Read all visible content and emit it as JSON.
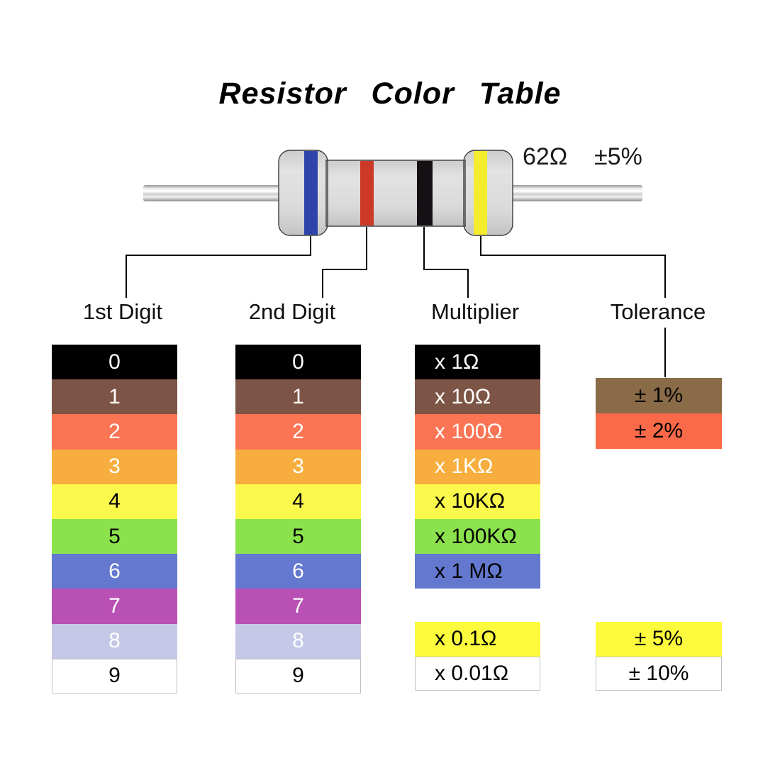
{
  "title": "Resistor Color Table",
  "resistor": {
    "value_label": "62Ω",
    "tolerance_label": "±5%",
    "body_color": "#dcdcdc",
    "bands": [
      {
        "name": "blue",
        "color": "#2e44ab"
      },
      {
        "name": "red",
        "color": "#cc3a27"
      },
      {
        "name": "black",
        "color": "#141014"
      },
      {
        "name": "yellow",
        "color": "#f5ec2d"
      }
    ]
  },
  "column_headers": [
    "1st Digit",
    "2nd Digit",
    "Multiplier",
    "Tolerance"
  ],
  "tables": {
    "first_digit": {
      "rows": [
        {
          "label": "0",
          "bg": "#000000",
          "fg": "#ffffff"
        },
        {
          "label": "1",
          "bg": "#7d5547",
          "fg": "#ffffff"
        },
        {
          "label": "2",
          "bg": "#fb7454",
          "fg": "#ffffff"
        },
        {
          "label": "3",
          "bg": "#f7ae3e",
          "fg": "#ffffff"
        },
        {
          "label": "4",
          "bg": "#fcf94d",
          "fg": "#000000"
        },
        {
          "label": "5",
          "bg": "#8ce24c",
          "fg": "#000000"
        },
        {
          "label": "6",
          "bg": "#6378ce",
          "fg": "#ffffff"
        },
        {
          "label": "7",
          "bg": "#b950b3",
          "fg": "#ffffff"
        },
        {
          "label": "8",
          "bg": "#c5c9e7",
          "fg": "#ffffff"
        },
        {
          "label": "9",
          "bg": "#ffffff",
          "fg": "#000000",
          "bd": "#c0c0c0"
        }
      ]
    },
    "second_digit": {
      "rows": [
        {
          "label": "0",
          "bg": "#000000",
          "fg": "#ffffff"
        },
        {
          "label": "1",
          "bg": "#7d5547",
          "fg": "#ffffff"
        },
        {
          "label": "2",
          "bg": "#fb7454",
          "fg": "#ffffff"
        },
        {
          "label": "3",
          "bg": "#f7ae3e",
          "fg": "#ffffff"
        },
        {
          "label": "4",
          "bg": "#fcf94d",
          "fg": "#000000"
        },
        {
          "label": "5",
          "bg": "#8ce24c",
          "fg": "#000000"
        },
        {
          "label": "6",
          "bg": "#6378ce",
          "fg": "#ffffff"
        },
        {
          "label": "7",
          "bg": "#b950b3",
          "fg": "#ffffff"
        },
        {
          "label": "8",
          "bg": "#c5c9e7",
          "fg": "#ffffff"
        },
        {
          "label": "9",
          "bg": "#ffffff",
          "fg": "#000000",
          "bd": "#c0c0c0"
        }
      ]
    },
    "multiplier": {
      "rows": [
        {
          "label": "x 1Ω",
          "bg": "#000000",
          "fg": "#ffffff"
        },
        {
          "label": "x 10Ω",
          "bg": "#7d5547",
          "fg": "#ffffff"
        },
        {
          "label": "x 100Ω",
          "bg": "#fb7454",
          "fg": "#ffffff"
        },
        {
          "label": "x 1KΩ",
          "bg": "#f7ae3e",
          "fg": "#ffffff"
        },
        {
          "label": "x 10KΩ",
          "bg": "#fcf94d",
          "fg": "#000000"
        },
        {
          "label": "x 100KΩ",
          "bg": "#8ce24c",
          "fg": "#000000"
        },
        {
          "label": "x 1 MΩ",
          "bg": "#6378ce",
          "fg": "#000000"
        }
      ]
    },
    "multiplier_extra": {
      "rows": [
        {
          "label": "x 0.1Ω",
          "bg": "#fdfb3e",
          "fg": "#000000"
        },
        {
          "label": "x 0.01Ω",
          "bg": "#ffffff",
          "fg": "#000000",
          "bd": "#c0c0c0"
        }
      ]
    },
    "tolerance": {
      "rows": [
        {
          "label": "± 1%",
          "bg": "#8a6b47",
          "fg": "#000000"
        },
        {
          "label": "± 2%",
          "bg": "#fb6a48",
          "fg": "#000000"
        }
      ]
    },
    "tolerance_extra": {
      "rows": [
        {
          "label": "± 5%",
          "bg": "#fdfb3e",
          "fg": "#000000"
        },
        {
          "label": "± 10%",
          "bg": "#ffffff",
          "fg": "#000000",
          "bd": "#c0c0c0"
        }
      ]
    }
  }
}
